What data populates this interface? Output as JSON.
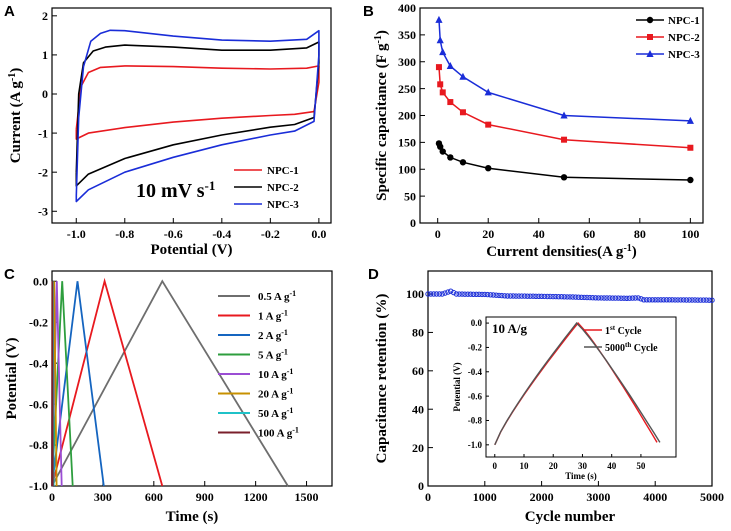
{
  "chart_data": [
    {
      "panel": "A",
      "type": "line",
      "title": "",
      "xlabel": "Potential (V)",
      "ylabel": "Current (A g-1)",
      "xlim": [
        -1.1,
        0.05
      ],
      "ylim": [
        -3.3,
        2.2
      ],
      "xticks": [
        -1.0,
        -0.8,
        -0.6,
        -0.4,
        -0.2,
        0.0
      ],
      "xtick_labels": [
        "-1.0",
        "-0.8",
        "-0.6",
        "-0.4",
        "-0.2",
        "0.0"
      ],
      "yticks": [
        -3,
        -2,
        -1,
        0,
        1,
        2
      ],
      "ytick_labels": [
        "-3",
        "-2",
        "-1",
        "0",
        "1",
        "2"
      ],
      "annotation": "10 mV s-1",
      "legend_position": "bottom-right",
      "series": [
        {
          "name": "NPC-1",
          "color": "#e8191f",
          "upper": [
            [
              -1.0,
              -0.9
            ],
            [
              -0.98,
              0.2
            ],
            [
              -0.95,
              0.55
            ],
            [
              -0.9,
              0.68
            ],
            [
              -0.8,
              0.72
            ],
            [
              -0.6,
              0.7
            ],
            [
              -0.4,
              0.66
            ],
            [
              -0.2,
              0.64
            ],
            [
              -0.05,
              0.66
            ],
            [
              0.0,
              0.72
            ]
          ],
          "lower": [
            [
              0.0,
              0.72
            ],
            [
              0.0,
              0.3
            ],
            [
              -0.02,
              -0.45
            ],
            [
              -0.1,
              -0.52
            ],
            [
              -0.2,
              -0.55
            ],
            [
              -0.4,
              -0.62
            ],
            [
              -0.6,
              -0.72
            ],
            [
              -0.8,
              -0.86
            ],
            [
              -0.95,
              -1.0
            ],
            [
              -1.0,
              -1.15
            ],
            [
              -1.0,
              -0.9
            ]
          ]
        },
        {
          "name": "NPC-2",
          "color": "#000000",
          "upper": [
            [
              -1.0,
              -2.0
            ],
            [
              -0.99,
              0.0
            ],
            [
              -0.97,
              0.8
            ],
            [
              -0.93,
              1.1
            ],
            [
              -0.88,
              1.2
            ],
            [
              -0.8,
              1.25
            ],
            [
              -0.6,
              1.2
            ],
            [
              -0.4,
              1.12
            ],
            [
              -0.2,
              1.12
            ],
            [
              -0.05,
              1.18
            ],
            [
              0.0,
              1.33
            ]
          ],
          "lower": [
            [
              0.0,
              1.33
            ],
            [
              0.0,
              0.8
            ],
            [
              -0.02,
              -0.6
            ],
            [
              -0.1,
              -0.78
            ],
            [
              -0.2,
              -0.85
            ],
            [
              -0.4,
              -1.05
            ],
            [
              -0.6,
              -1.3
            ],
            [
              -0.8,
              -1.65
            ],
            [
              -0.95,
              -2.05
            ],
            [
              -1.0,
              -2.35
            ],
            [
              -1.0,
              -2.0
            ]
          ]
        },
        {
          "name": "NPC-3",
          "color": "#1a2dd8",
          "upper": [
            [
              -1.0,
              -2.6
            ],
            [
              -0.99,
              -0.6
            ],
            [
              -0.97,
              0.7
            ],
            [
              -0.94,
              1.35
            ],
            [
              -0.9,
              1.55
            ],
            [
              -0.86,
              1.63
            ],
            [
              -0.8,
              1.62
            ],
            [
              -0.6,
              1.48
            ],
            [
              -0.4,
              1.38
            ],
            [
              -0.2,
              1.35
            ],
            [
              -0.05,
              1.4
            ],
            [
              0.0,
              1.62
            ]
          ],
          "lower": [
            [
              0.0,
              1.62
            ],
            [
              0.0,
              1.0
            ],
            [
              -0.02,
              -0.7
            ],
            [
              -0.1,
              -0.95
            ],
            [
              -0.2,
              -1.05
            ],
            [
              -0.4,
              -1.3
            ],
            [
              -0.6,
              -1.62
            ],
            [
              -0.8,
              -2.0
            ],
            [
              -0.95,
              -2.45
            ],
            [
              -1.0,
              -2.75
            ],
            [
              -1.0,
              -2.6
            ]
          ]
        }
      ]
    },
    {
      "panel": "B",
      "type": "line",
      "title": "",
      "xlabel": "Current  densities(A g-1)",
      "ylabel": "Specific capacitance (F g-1)",
      "xlim": [
        -7,
        105
      ],
      "ylim": [
        0,
        400
      ],
      "xticks": [
        0,
        20,
        40,
        60,
        80,
        100
      ],
      "xtick_labels": [
        "0",
        "20",
        "40",
        "60",
        "80",
        "100"
      ],
      "yticks": [
        0,
        50,
        100,
        150,
        200,
        250,
        300,
        350,
        400
      ],
      "ytick_labels": [
        "0",
        "50",
        "100",
        "150",
        "200",
        "250",
        "300",
        "350",
        "400"
      ],
      "x": [
        0.5,
        1,
        2,
        5,
        10,
        20,
        50,
        100
      ],
      "legend_position": "top-right",
      "series": [
        {
          "name": "NPC-1",
          "color": "#000000",
          "marker": "circle",
          "values": [
            148,
            142,
            133,
            122,
            113,
            102,
            85,
            80
          ]
        },
        {
          "name": "NPC-2",
          "color": "#e8191f",
          "marker": "square",
          "values": [
            290,
            258,
            243,
            225,
            206,
            183,
            155,
            140
          ]
        },
        {
          "name": "NPC-3",
          "color": "#1a2dd8",
          "marker": "triangle",
          "values": [
            378,
            340,
            318,
            292,
            272,
            243,
            200,
            190
          ]
        }
      ]
    },
    {
      "panel": "C",
      "type": "line",
      "title": "",
      "xlabel": "Time (s)",
      "ylabel": "Potential (V)",
      "xlim": [
        0,
        1650
      ],
      "ylim": [
        -1.0,
        0.05
      ],
      "xticks": [
        0,
        300,
        600,
        900,
        1200,
        1500
      ],
      "xtick_labels": [
        "0",
        "300",
        "600",
        "900",
        "1200",
        "1500"
      ],
      "yticks": [
        -1.0,
        -0.8,
        -0.6,
        -0.4,
        -0.2,
        0.0
      ],
      "ytick_labels": [
        "-1.0",
        "-0.8",
        "-0.6",
        "-0.4",
        "-0.2",
        "0.0"
      ],
      "legend_position": "right",
      "series": [
        {
          "name": "0.5 A g-1",
          "color": "#6e6e6e",
          "charge_end": 650,
          "discharge_end": 1390
        },
        {
          "name": "1 A g-1",
          "color": "#e8191f",
          "charge_end": 310,
          "discharge_end": 650
        },
        {
          "name": "2 A g-1",
          "color": "#1565c0",
          "charge_end": 150,
          "discharge_end": 305
        },
        {
          "name": "5 A g-1",
          "color": "#2e9e3e",
          "charge_end": 60,
          "discharge_end": 122
        },
        {
          "name": "10 A g-1",
          "color": "#9b4dd4",
          "charge_end": 28,
          "discharge_end": 57
        },
        {
          "name": "20 A g-1",
          "color": "#c79000",
          "charge_end": 13,
          "discharge_end": 27
        },
        {
          "name": "50 A g-1",
          "color": "#1fc2c8",
          "charge_end": 5,
          "discharge_end": 10
        },
        {
          "name": "100 A g-1",
          "color": "#7a1f2b",
          "charge_end": 2.5,
          "discharge_end": 5
        }
      ]
    },
    {
      "panel": "D",
      "type": "scatter",
      "title": "",
      "xlabel": "Cycle number",
      "ylabel": "Capacitance retention (%)",
      "xlim": [
        0,
        5000
      ],
      "ylim": [
        0,
        112
      ],
      "xticks": [
        0,
        1000,
        2000,
        3000,
        4000,
        5000
      ],
      "xtick_labels": [
        "0",
        "1000",
        "2000",
        "3000",
        "4000",
        "5000"
      ],
      "yticks": [
        0,
        20,
        40,
        60,
        80,
        100
      ],
      "ytick_labels": [
        "0",
        "20",
        "40",
        "60",
        "80",
        "100"
      ],
      "color": "#1a2dd8",
      "retention_points": [
        [
          0,
          100
        ],
        [
          250,
          100
        ],
        [
          400,
          101.5
        ],
        [
          500,
          100
        ],
        [
          1000,
          99.8
        ],
        [
          1400,
          99
        ],
        [
          2000,
          98.8
        ],
        [
          2500,
          98.5
        ],
        [
          3000,
          98
        ],
        [
          3500,
          97.8
        ],
        [
          3700,
          98
        ],
        [
          3800,
          97
        ],
        [
          4200,
          97
        ],
        [
          5000,
          96.8
        ]
      ],
      "inset": {
        "label": "10 A/g",
        "xlabel": "Time (s)",
        "ylabel": "Potential (V)",
        "xlim": [
          -3,
          62
        ],
        "ylim": [
          -1.1,
          0.05
        ],
        "xticks": [
          0,
          10,
          20,
          30,
          40,
          50
        ],
        "xtick_labels": [
          "0",
          "10",
          "20",
          "30",
          "40",
          "50"
        ],
        "yticks": [
          -1.0,
          -0.8,
          -0.6,
          -0.4,
          -0.2,
          0.0
        ],
        "ytick_labels": [
          "-1.0",
          "-0.8",
          "-0.6",
          "-0.4",
          "-0.2",
          "0.0"
        ],
        "series": [
          {
            "name": "1st Cycle",
            "color": "#e8191f",
            "charge_end": 28.5,
            "discharge_end": 55.5
          },
          {
            "name": "5000th Cycle",
            "color": "#555555",
            "charge_end": 28.0,
            "discharge_end": 56.5
          }
        ]
      }
    }
  ],
  "labels": {
    "A": "A",
    "B": "B",
    "C": "C",
    "D": "D",
    "a_anno_base": "10 mV s",
    "a_anno_sup": "-1",
    "a_ylabel_base": "Current (A g",
    "a_ylabel_sup": "-1",
    "a_ylabel_end": ")",
    "b_ylabel_base": "Specific capacitance (F g",
    "b_ylabel_sup": "-1",
    "b_ylabel_end": ")",
    "b_xlabel_base": "Current  densities(A g",
    "b_xlabel_sup": "-1",
    "b_xlabel_end": ")",
    "c_legend_unit_base": "A g",
    "c_legend_unit_sup": "-1",
    "d_inset_leg1_base": "1",
    "d_inset_leg1_sup": "st",
    "d_inset_leg1_end": " Cycle",
    "d_inset_leg2_base": "5000",
    "d_inset_leg2_sup": "th",
    "d_inset_leg2_end": " Cycle"
  }
}
